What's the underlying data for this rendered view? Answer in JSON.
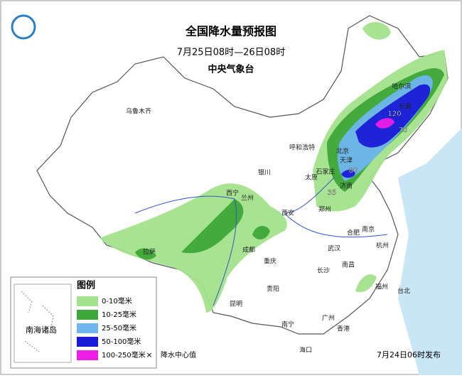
{
  "header": {
    "title": "全国降水量预报图",
    "period": "7月25日08时—26日08时",
    "issuer": "中央气象台"
  },
  "legend": {
    "title": "图例",
    "items": [
      {
        "label": "0-10毫米",
        "color": "#a3e28c"
      },
      {
        "label": "10-25毫米",
        "color": "#3ea63a"
      },
      {
        "label": "25-50毫米",
        "color": "#6fb6ee"
      },
      {
        "label": "50-100毫米",
        "color": "#1b1bd6"
      },
      {
        "label": "100-250毫米",
        "color": "#ee1ee6"
      }
    ],
    "center_marker": "降水中心值"
  },
  "inset_label": "南海诸岛",
  "cities": [
    "乌鲁木齐",
    "呼和浩特",
    "银川",
    "太原",
    "石家庄",
    "北京",
    "天津",
    "济南",
    "郑州",
    "西宁",
    "兰州",
    "西安",
    "成都",
    "拉萨",
    "重庆",
    "武汉",
    "合肥",
    "南京",
    "杭州",
    "长沙",
    "南昌",
    "福州",
    "台北",
    "贵阳",
    "昆明",
    "南宁",
    "广州",
    "香港",
    "海口",
    "哈尔滨",
    "长春"
  ],
  "rain_centers": [
    "120",
    "70",
    "80",
    "35"
  ],
  "footer": "7月24日06时发布"
}
